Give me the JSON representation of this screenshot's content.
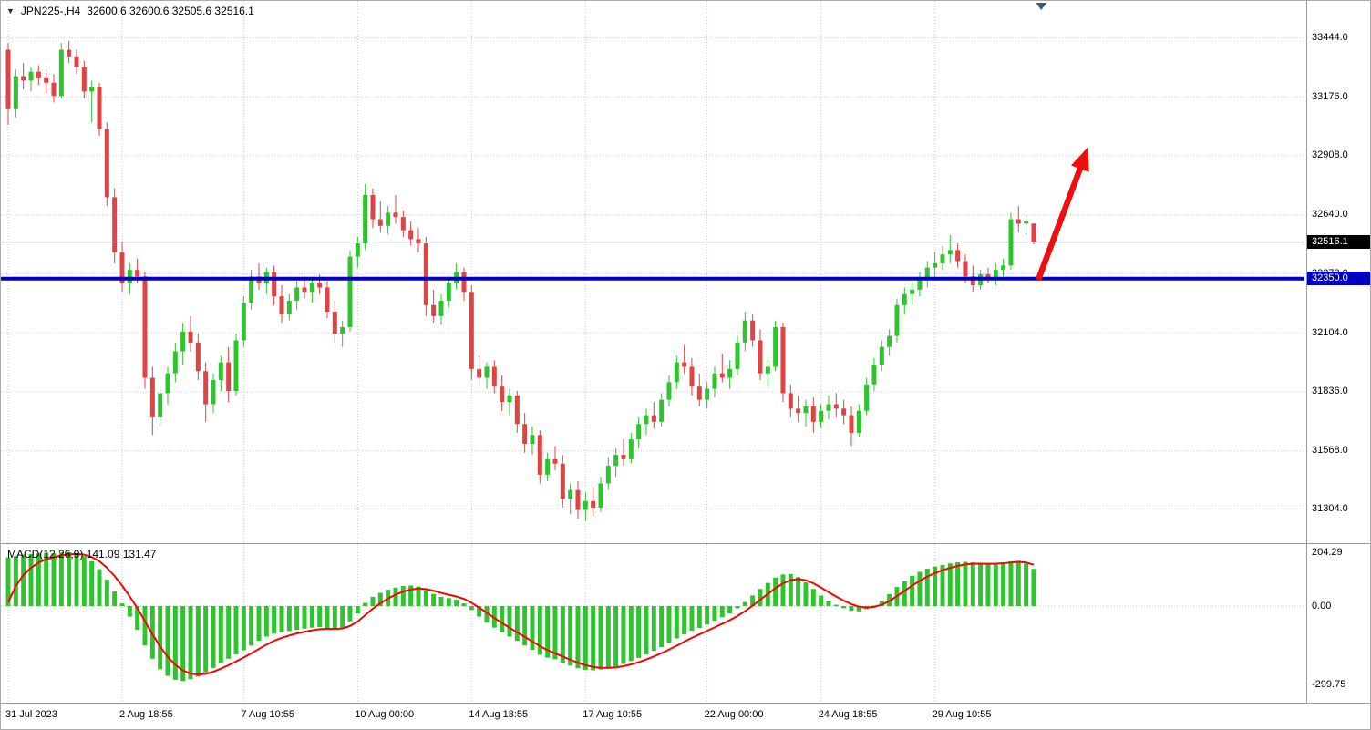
{
  "window": {
    "symbol_with_timeframe": "JPN225-,H4",
    "ohlc": "32600.6 32600.6 32505.6 32516.1"
  },
  "icons": {
    "header_marker": "▼"
  },
  "colors": {
    "background": "#FFFFFF",
    "grid": "#C9C9C9",
    "up_candle": "#2FC42F",
    "down_candle": "#E04343",
    "macd_histogram": "#2FC42F",
    "macd_signal": "#FF0000",
    "macd_zero_line": "#BDBDBD",
    "support_line": "#0000C0",
    "trend_arrow": "#ED0F0F",
    "current_price_line": "#ABABAB",
    "current_price_badge_bg": "#000000",
    "support_badge_bg": "#0000C0",
    "axis_text": "#000000",
    "shift_marker": "#3A5F6F"
  },
  "chart_data": [
    {
      "type": "candlestick",
      "symbol": "JPN225-",
      "timeframe": "H4",
      "last_quote": {
        "open": 32600.6,
        "high": 32600.6,
        "low": 32505.6,
        "close": 32516.1
      },
      "y_axis": {
        "ticks": [
          33444.0,
          33176.0,
          32908.0,
          32640.0,
          32372.0,
          32104.0,
          31836.0,
          31568.0,
          31304.0
        ]
      },
      "x_axis": {
        "labels": [
          {
            "text": "31 Jul 2023",
            "bar_index": 0
          },
          {
            "text": "2 Aug 18:55",
            "bar_index": 15
          },
          {
            "text": "7 Aug 10:55",
            "bar_index": 31
          },
          {
            "text": "10 Aug 00:00",
            "bar_index": 46
          },
          {
            "text": "14 Aug 18:55",
            "bar_index": 61
          },
          {
            "text": "17 Aug 10:55",
            "bar_index": 76
          },
          {
            "text": "22 Aug 00:00",
            "bar_index": 92
          },
          {
            "text": "24 Aug 18:55",
            "bar_index": 107
          },
          {
            "text": "29 Aug 10:55",
            "bar_index": 122
          }
        ]
      },
      "candle_format": [
        "open",
        "high",
        "low",
        "close"
      ],
      "candles": [
        [
          33390,
          33420,
          33050,
          33120
        ],
        [
          33120,
          33300,
          33080,
          33270
        ],
        [
          33270,
          33330,
          33210,
          33250
        ],
        [
          33250,
          33310,
          33200,
          33290
        ],
        [
          33290,
          33320,
          33230,
          33260
        ],
        [
          33260,
          33300,
          33190,
          33240
        ],
        [
          33240,
          33280,
          33150,
          33180
        ],
        [
          33180,
          33420,
          33170,
          33390
        ],
        [
          33390,
          33430,
          33330,
          33360
        ],
        [
          33360,
          33390,
          33280,
          33310
        ],
        [
          33310,
          33340,
          33170,
          33200
        ],
        [
          33200,
          33250,
          33060,
          33220
        ],
        [
          33220,
          33240,
          33000,
          33030
        ],
        [
          33030,
          33060,
          32680,
          32720
        ],
        [
          32720,
          32760,
          32420,
          32470
        ],
        [
          32470,
          32520,
          32290,
          32330
        ],
        [
          32330,
          32420,
          32280,
          32390
        ],
        [
          32390,
          32440,
          32330,
          32360
        ],
        [
          32360,
          32380,
          31850,
          31900
        ],
        [
          31900,
          31950,
          31640,
          31720
        ],
        [
          31720,
          31860,
          31680,
          31830
        ],
        [
          31830,
          31950,
          31780,
          31920
        ],
        [
          31920,
          32060,
          31880,
          32020
        ],
        [
          32020,
          32150,
          31960,
          32110
        ],
        [
          32110,
          32180,
          32020,
          32060
        ],
        [
          32060,
          32100,
          31890,
          31930
        ],
        [
          31930,
          31970,
          31700,
          31780
        ],
        [
          31780,
          31920,
          31740,
          31890
        ],
        [
          31890,
          32000,
          31840,
          31970
        ],
        [
          31970,
          32040,
          31790,
          31840
        ],
        [
          31840,
          32100,
          31820,
          32070
        ],
        [
          32070,
          32270,
          32040,
          32240
        ],
        [
          32240,
          32390,
          32210,
          32360
        ],
        [
          32360,
          32420,
          32300,
          32330
        ],
        [
          32330,
          32400,
          32280,
          32380
        ],
        [
          32380,
          32410,
          32230,
          32270
        ],
        [
          32270,
          32320,
          32150,
          32190
        ],
        [
          32190,
          32280,
          32160,
          32250
        ],
        [
          32250,
          32340,
          32210,
          32310
        ],
        [
          32310,
          32360,
          32260,
          32290
        ],
        [
          32290,
          32350,
          32240,
          32330
        ],
        [
          32330,
          32370,
          32280,
          32310
        ],
        [
          32310,
          32340,
          32170,
          32200
        ],
        [
          32200,
          32250,
          32060,
          32100
        ],
        [
          32100,
          32160,
          32040,
          32130
        ],
        [
          32130,
          32480,
          32110,
          32450
        ],
        [
          32450,
          32540,
          32400,
          32510
        ],
        [
          32510,
          32780,
          32480,
          32730
        ],
        [
          32730,
          32760,
          32580,
          32620
        ],
        [
          32620,
          32700,
          32560,
          32590
        ],
        [
          32590,
          32680,
          32550,
          32650
        ],
        [
          32650,
          32730,
          32600,
          32630
        ],
        [
          32630,
          32660,
          32540,
          32570
        ],
        [
          32570,
          32610,
          32500,
          32530
        ],
        [
          32530,
          32580,
          32470,
          32510
        ],
        [
          32510,
          32540,
          32180,
          32230
        ],
        [
          32230,
          32300,
          32150,
          32180
        ],
        [
          32180,
          32280,
          32140,
          32250
        ],
        [
          32250,
          32360,
          32220,
          32330
        ],
        [
          32330,
          32420,
          32300,
          32380
        ],
        [
          32380,
          32400,
          32250,
          32290
        ],
        [
          32290,
          32320,
          31890,
          31940
        ],
        [
          31940,
          32000,
          31860,
          31900
        ],
        [
          31900,
          31970,
          31850,
          31950
        ],
        [
          31950,
          31980,
          31830,
          31860
        ],
        [
          31860,
          31910,
          31750,
          31790
        ],
        [
          31790,
          31850,
          31730,
          31820
        ],
        [
          31820,
          31840,
          31650,
          31690
        ],
        [
          31690,
          31740,
          31560,
          31600
        ],
        [
          31600,
          31680,
          31550,
          31640
        ],
        [
          31640,
          31660,
          31420,
          31460
        ],
        [
          31460,
          31560,
          31430,
          31530
        ],
        [
          31530,
          31590,
          31480,
          31510
        ],
        [
          31510,
          31550,
          31310,
          31350
        ],
        [
          31350,
          31420,
          31280,
          31390
        ],
        [
          31390,
          31430,
          31260,
          31300
        ],
        [
          31300,
          31380,
          31250,
          31340
        ],
        [
          31340,
          31400,
          31270,
          31310
        ],
        [
          31310,
          31450,
          31290,
          31420
        ],
        [
          31420,
          31540,
          31390,
          31500
        ],
        [
          31500,
          31580,
          31450,
          31550
        ],
        [
          31550,
          31620,
          31500,
          31530
        ],
        [
          31530,
          31650,
          31510,
          31620
        ],
        [
          31620,
          31720,
          31580,
          31690
        ],
        [
          31690,
          31760,
          31640,
          31730
        ],
        [
          31730,
          31790,
          31670,
          31700
        ],
        [
          31700,
          31830,
          31680,
          31800
        ],
        [
          31800,
          31910,
          31770,
          31880
        ],
        [
          31880,
          32000,
          31850,
          31970
        ],
        [
          31970,
          32050,
          31920,
          31950
        ],
        [
          31950,
          31990,
          31820,
          31860
        ],
        [
          31860,
          31920,
          31770,
          31800
        ],
        [
          31800,
          31880,
          31760,
          31850
        ],
        [
          31850,
          31950,
          31810,
          31920
        ],
        [
          31920,
          32010,
          31880,
          31900
        ],
        [
          31900,
          31980,
          31850,
          31940
        ],
        [
          31940,
          32090,
          31910,
          32060
        ],
        [
          32060,
          32200,
          32020,
          32160
        ],
        [
          32160,
          32190,
          32040,
          32070
        ],
        [
          32070,
          32120,
          31890,
          31920
        ],
        [
          31920,
          31980,
          31860,
          31950
        ],
        [
          31950,
          32160,
          31930,
          32130
        ],
        [
          32130,
          32150,
          31790,
          31830
        ],
        [
          31830,
          31870,
          31720,
          31760
        ],
        [
          31760,
          31820,
          31700,
          31740
        ],
        [
          31740,
          31800,
          31680,
          31770
        ],
        [
          31770,
          31810,
          31650,
          31700
        ],
        [
          31700,
          31780,
          31670,
          31750
        ],
        [
          31750,
          31820,
          31710,
          31780
        ],
        [
          31780,
          31830,
          31720,
          31760
        ],
        [
          31760,
          31800,
          31690,
          31730
        ],
        [
          31730,
          31770,
          31590,
          31650
        ],
        [
          31650,
          31780,
          31630,
          31750
        ],
        [
          31750,
          31900,
          31730,
          31870
        ],
        [
          31870,
          31990,
          31840,
          31960
        ],
        [
          31960,
          32070,
          31930,
          32040
        ],
        [
          32040,
          32120,
          32000,
          32090
        ],
        [
          32090,
          32260,
          32060,
          32230
        ],
        [
          32230,
          32310,
          32190,
          32280
        ],
        [
          32280,
          32340,
          32230,
          32300
        ],
        [
          32300,
          32380,
          32270,
          32350
        ],
        [
          32350,
          32430,
          32310,
          32400
        ],
        [
          32400,
          32470,
          32350,
          32420
        ],
        [
          32420,
          32500,
          32390,
          32460
        ],
        [
          32460,
          32550,
          32420,
          32480
        ],
        [
          32480,
          32510,
          32400,
          32430
        ],
        [
          32430,
          32460,
          32330,
          32360
        ],
        [
          32360,
          32410,
          32290,
          32320
        ],
        [
          32320,
          32390,
          32300,
          32370
        ],
        [
          32370,
          32400,
          32330,
          32350
        ],
        [
          32350,
          32420,
          32320,
          32390
        ],
        [
          32390,
          32440,
          32360,
          32410
        ],
        [
          32410,
          32650,
          32390,
          32620
        ],
        [
          32620,
          32680,
          32560,
          32600
        ],
        [
          32600,
          32640,
          32550,
          32610
        ],
        [
          32600.6,
          32600.6,
          32505.6,
          32516.1
        ]
      ],
      "overlays": {
        "support_line_price": 32350.0,
        "support_badge_label": "32350.0",
        "current_price": 32516.1,
        "current_price_badge_label": "32516.1",
        "trend_arrow": {
          "from_bar": 135.6,
          "from_price": 32345,
          "to_bar": 142.2,
          "to_price": 32950
        },
        "shift_marker_bar": 136
      }
    },
    {
      "type": "bar",
      "name": "MACD(12,26,9)",
      "label": "MACD(12,26,9) 141.09 131.47",
      "macd_value": 141.09,
      "signal_value": 131.47,
      "y_axis": {
        "ticks": [
          204.29,
          0,
          -299.75
        ],
        "tick_labels": [
          "204.29",
          "0.00",
          "-299.75"
        ]
      },
      "values": [
        185,
        190,
        195,
        198,
        200,
        202,
        200,
        204,
        205,
        200,
        190,
        170,
        140,
        100,
        55,
        10,
        -40,
        -90,
        -150,
        -200,
        -240,
        -265,
        -280,
        -285,
        -278,
        -268,
        -252,
        -235,
        -216,
        -200,
        -184,
        -168,
        -150,
        -132,
        -116,
        -105,
        -100,
        -95,
        -90,
        -86,
        -82,
        -80,
        -84,
        -88,
        -82,
        -58,
        -28,
        12,
        35,
        50,
        62,
        70,
        76,
        78,
        74,
        60,
        46,
        35,
        30,
        24,
        10,
        -15,
        -40,
        -62,
        -82,
        -100,
        -116,
        -132,
        -150,
        -166,
        -185,
        -196,
        -202,
        -215,
        -226,
        -236,
        -242,
        -244,
        -241,
        -236,
        -229,
        -220,
        -209,
        -197,
        -184,
        -170,
        -156,
        -140,
        -123,
        -107,
        -94,
        -83,
        -70,
        -56,
        -42,
        -28,
        -8,
        15,
        40,
        65,
        88,
        108,
        120,
        122,
        110,
        90,
        65,
        40,
        20,
        5,
        -8,
        -18,
        -20,
        -12,
        2,
        20,
        45,
        72,
        95,
        115,
        130,
        142,
        150,
        156,
        162,
        166,
        168,
        166,
        162,
        160,
        162,
        165,
        170,
        172,
        162,
        141.09
      ]
    }
  ]
}
